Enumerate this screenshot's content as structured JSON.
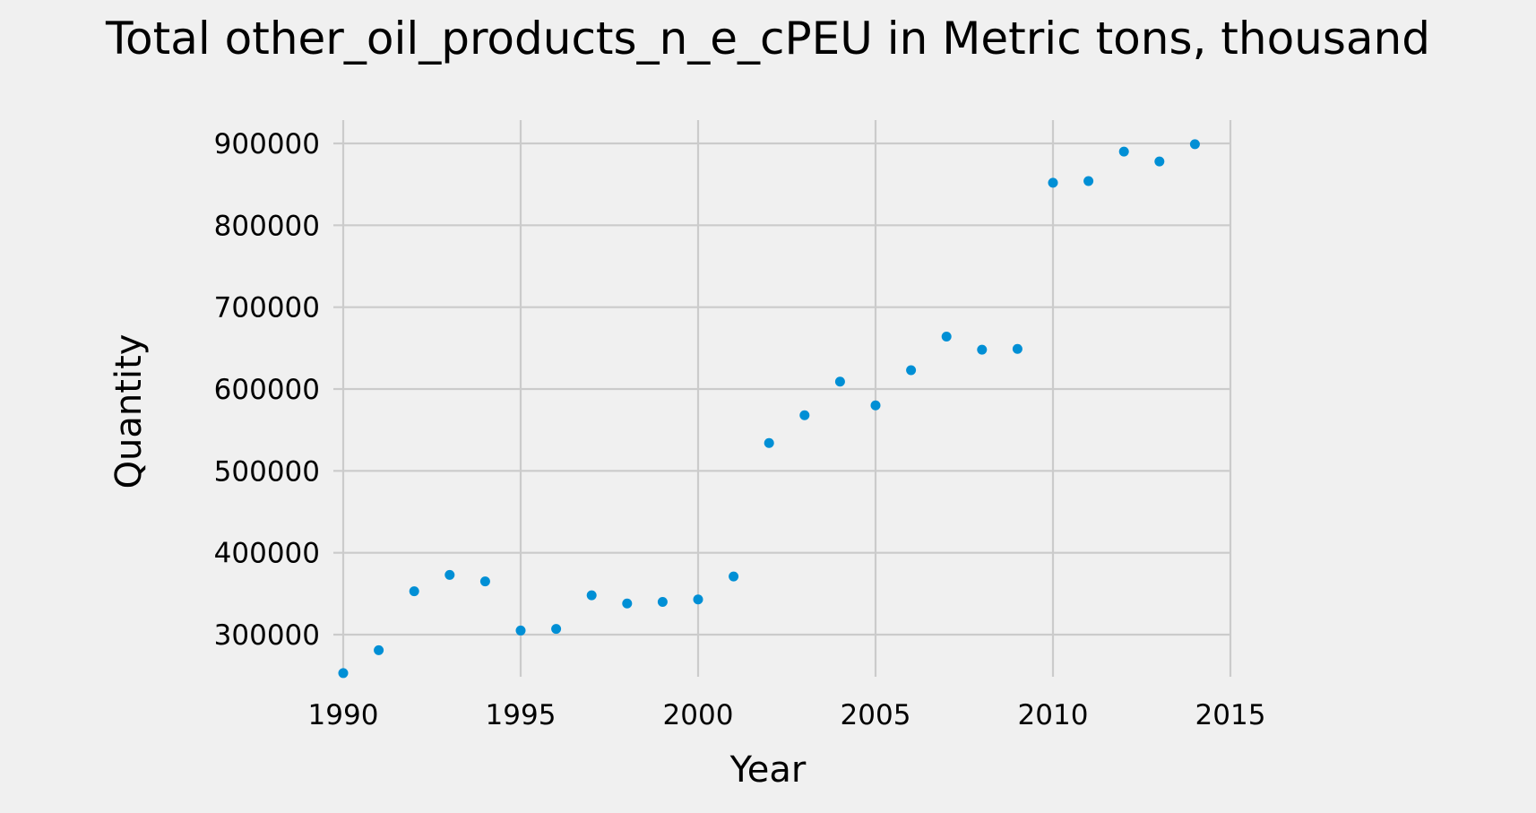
{
  "chart_data": {
    "type": "scatter",
    "title": "Total other_oil_products_n_e_cPEU in Metric tons,  thousand",
    "xlabel": "Year",
    "ylabel": "Quantity",
    "x": [
      1990,
      1991,
      1992,
      1993,
      1994,
      1995,
      1996,
      1997,
      1998,
      1999,
      2000,
      2001,
      2002,
      2003,
      2004,
      2005,
      2006,
      2007,
      2008,
      2009,
      2010,
      2011,
      2012,
      2013,
      2014
    ],
    "series": [
      {
        "values": [
          253000,
          281000,
          353000,
          373000,
          365000,
          305000,
          307000,
          348000,
          338000,
          340000,
          343000,
          371000,
          534000,
          568000,
          609000,
          580000,
          623000,
          664000,
          648000,
          649000,
          852000,
          854000,
          890000,
          878000,
          899000
        ]
      }
    ],
    "xlim": [
      1990,
      2015
    ],
    "ylim": [
      300000,
      900000
    ],
    "xticks": [
      "1990",
      "1995",
      "2000",
      "2005",
      "2010",
      "2015"
    ],
    "yticks": [
      "300000",
      "400000",
      "500000",
      "600000",
      "700000",
      "800000",
      "900000"
    ],
    "grid": true,
    "colors": {
      "background": "#f0f0f0",
      "marker": "#008fd5",
      "grid": "#cbcbcb"
    }
  }
}
